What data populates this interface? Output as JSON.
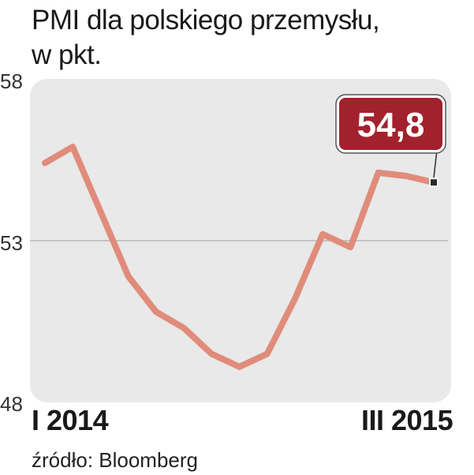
{
  "title_line1": "PMI dla polskiego przemysłu,",
  "title_line2": "w pkt.",
  "source": "źródło: Bloomberg",
  "colors": {
    "line": "#e08c7b",
    "badge": "#a3212c",
    "panel": "#e9e9e9",
    "grid": "#b8b8b8"
  },
  "chart_data": {
    "type": "line",
    "title": "PMI dla polskiego przemysłu, w pkt.",
    "x_labels": [
      "I 2014",
      "III 2015"
    ],
    "x_range": [
      "I 2014",
      "III 2015"
    ],
    "ylim": [
      48,
      58
    ],
    "yticks": [
      "58",
      "53",
      "48"
    ],
    "grid": "horizontal line at 53",
    "series": [
      {
        "values": [
          55.4,
          55.9,
          53.9,
          51.9,
          50.8,
          50.3,
          49.5,
          49.1,
          49.5,
          51.2,
          53.2,
          52.8,
          55.1,
          55.0,
          54.8
        ]
      }
    ],
    "last_value_label": "54,8"
  }
}
